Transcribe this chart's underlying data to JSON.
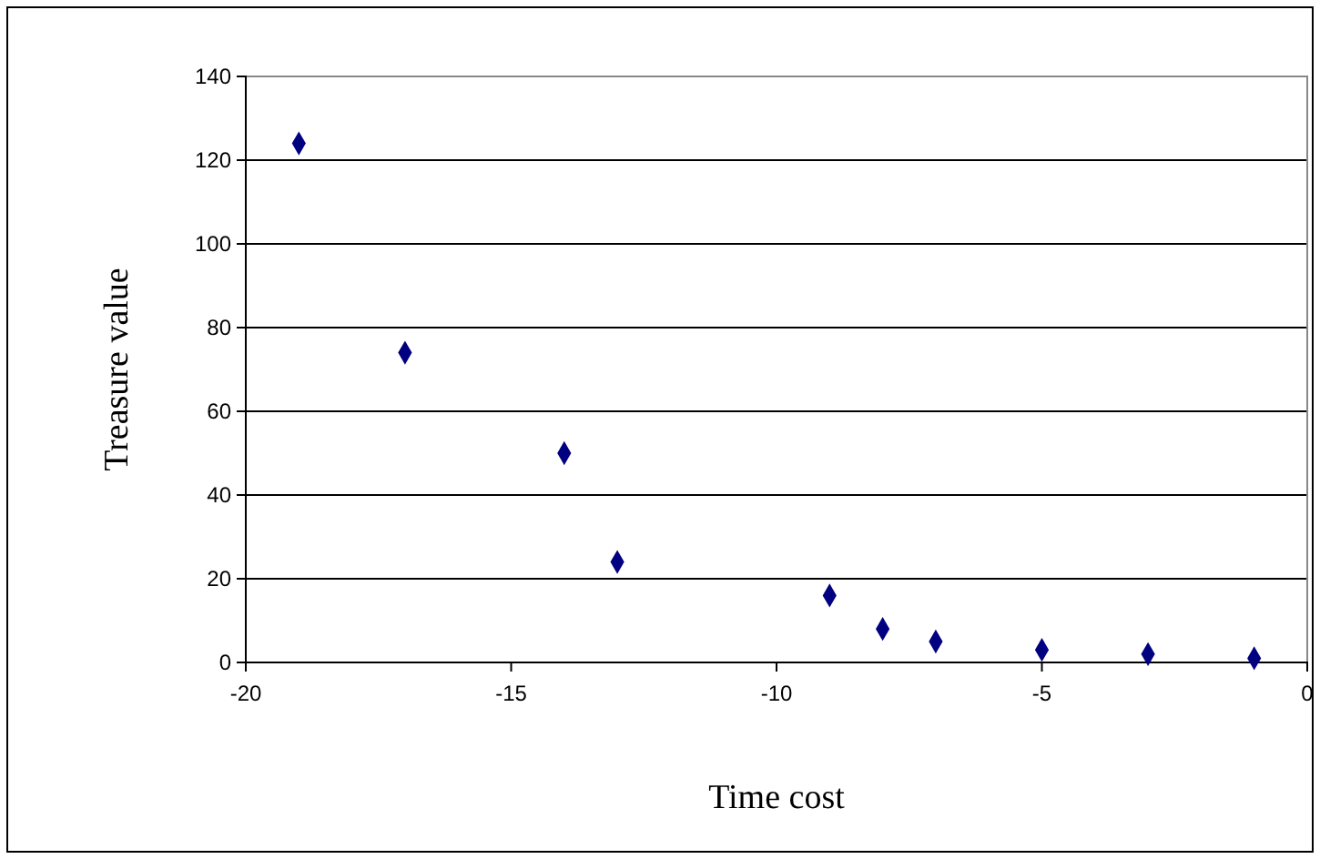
{
  "chart_data": {
    "type": "scatter",
    "xlabel": "Time cost",
    "ylabel": "Treasure value",
    "x": [
      -19,
      -17,
      -14,
      -13,
      -9,
      -8,
      -7,
      -5,
      -3,
      -1
    ],
    "series": [
      {
        "color": "#000080",
        "values": [
          124,
          74,
          50,
          24,
          16,
          8,
          5,
          3,
          2,
          1
        ]
      }
    ],
    "xlim": [
      -20,
      0
    ],
    "xticks": [
      -20,
      -15,
      -10,
      -5,
      0
    ],
    "ylim": [
      0,
      140
    ],
    "yticks": [
      0,
      20,
      40,
      60,
      80,
      100,
      120,
      140
    ],
    "grid": "y",
    "marker": "diamond"
  }
}
